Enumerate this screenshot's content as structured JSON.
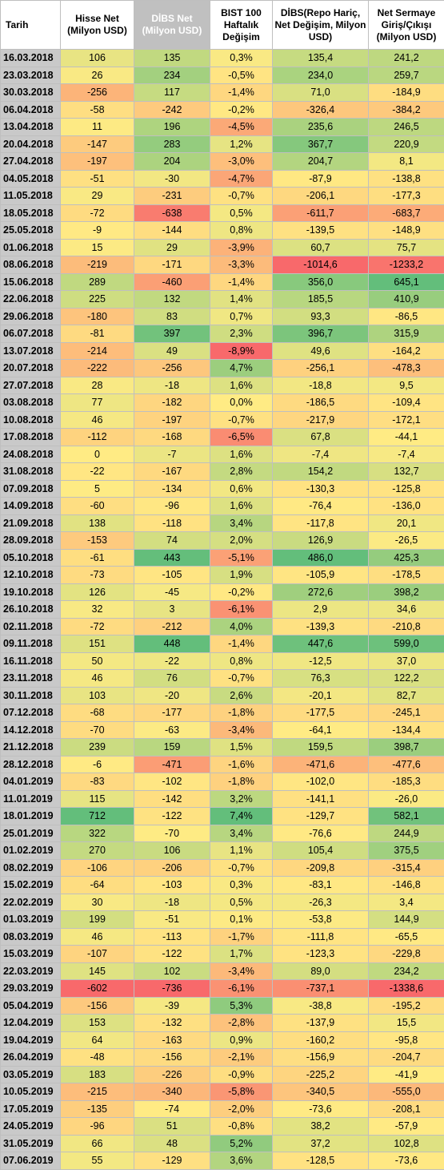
{
  "headers": [
    "Tarih",
    "Hisse Net (Milyon USD)",
    "DİBS Net (Milyon USD)",
    "BIST 100 Haftalık Değişim",
    "DİBS(Repo Hariç, Net Değişim, Milyon USD)",
    "Net Sermaye Giriş/Çıkışı (Milyon USD)"
  ],
  "rows": [
    [
      "16.03.2018",
      "106",
      "135",
      "0,3%",
      "135,4",
      "241,2"
    ],
    [
      "23.03.2018",
      "26",
      "234",
      "-0,5%",
      "234,0",
      "259,7"
    ],
    [
      "30.03.2018",
      "-256",
      "117",
      "-1,4%",
      "71,0",
      "-184,9"
    ],
    [
      "06.04.2018",
      "-58",
      "-242",
      "-0,2%",
      "-326,4",
      "-384,2"
    ],
    [
      "13.04.2018",
      "11",
      "196",
      "-4,5%",
      "235,6",
      "246,5"
    ],
    [
      "20.04.2018",
      "-147",
      "283",
      "1,2%",
      "367,7",
      "220,9"
    ],
    [
      "27.04.2018",
      "-197",
      "204",
      "-3,0%",
      "204,7",
      "8,1"
    ],
    [
      "04.05.2018",
      "-51",
      "-30",
      "-4,7%",
      "-87,9",
      "-138,8"
    ],
    [
      "11.05.2018",
      "29",
      "-231",
      "-0,7%",
      "-206,1",
      "-177,3"
    ],
    [
      "18.05.2018",
      "-72",
      "-638",
      "0,5%",
      "-611,7",
      "-683,7"
    ],
    [
      "25.05.2018",
      "-9",
      "-144",
      "0,8%",
      "-139,5",
      "-148,9"
    ],
    [
      "01.06.2018",
      "15",
      "29",
      "-3,9%",
      "60,7",
      "75,7"
    ],
    [
      "08.06.2018",
      "-219",
      "-171",
      "-3,3%",
      "-1014,6",
      "-1233,2"
    ],
    [
      "15.06.2018",
      "289",
      "-460",
      "-1,4%",
      "356,0",
      "645,1"
    ],
    [
      "22.06.2018",
      "225",
      "132",
      "1,4%",
      "185,5",
      "410,9"
    ],
    [
      "29.06.2018",
      "-180",
      "83",
      "0,7%",
      "93,3",
      "-86,5"
    ],
    [
      "06.07.2018",
      "-81",
      "397",
      "2,3%",
      "396,7",
      "315,9"
    ],
    [
      "13.07.2018",
      "-214",
      "49",
      "-8,9%",
      "49,6",
      "-164,2"
    ],
    [
      "20.07.2018",
      "-222",
      "-256",
      "4,7%",
      "-256,1",
      "-478,3"
    ],
    [
      "27.07.2018",
      "28",
      "-18",
      "1,6%",
      "-18,8",
      "9,5"
    ],
    [
      "03.08.2018",
      "77",
      "-182",
      "0,0%",
      "-186,5",
      "-109,4"
    ],
    [
      "10.08.2018",
      "46",
      "-197",
      "-0,7%",
      "-217,9",
      "-172,1"
    ],
    [
      "17.08.2018",
      "-112",
      "-168",
      "-6,5%",
      "67,8",
      "-44,1"
    ],
    [
      "24.08.2018",
      "0",
      "-7",
      "1,6%",
      "-7,4",
      "-7,4"
    ],
    [
      "31.08.2018",
      "-22",
      "-167",
      "2,8%",
      "154,2",
      "132,7"
    ],
    [
      "07.09.2018",
      "5",
      "-134",
      "0,6%",
      "-130,3",
      "-125,8"
    ],
    [
      "14.09.2018",
      "-60",
      "-96",
      "1,6%",
      "-76,4",
      "-136,0"
    ],
    [
      "21.09.2018",
      "138",
      "-118",
      "3,4%",
      "-117,8",
      "20,1"
    ],
    [
      "28.09.2018",
      "-153",
      "74",
      "2,0%",
      "126,9",
      "-26,5"
    ],
    [
      "05.10.2018",
      "-61",
      "443",
      "-5,1%",
      "486,0",
      "425,3"
    ],
    [
      "12.10.2018",
      "-73",
      "-105",
      "1,9%",
      "-105,9",
      "-178,5"
    ],
    [
      "19.10.2018",
      "126",
      "-45",
      "-0,2%",
      "272,6",
      "398,2"
    ],
    [
      "26.10.2018",
      "32",
      "3",
      "-6,1%",
      "2,9",
      "34,6"
    ],
    [
      "02.11.2018",
      "-72",
      "-212",
      "4,0%",
      "-139,3",
      "-210,8"
    ],
    [
      "09.11.2018",
      "151",
      "448",
      "-1,4%",
      "447,6",
      "599,0"
    ],
    [
      "16.11.2018",
      "50",
      "-22",
      "0,8%",
      "-12,5",
      "37,0"
    ],
    [
      "23.11.2018",
      "46",
      "76",
      "-0,7%",
      "76,3",
      "122,2"
    ],
    [
      "30.11.2018",
      "103",
      "-20",
      "2,6%",
      "-20,1",
      "82,7"
    ],
    [
      "07.12.2018",
      "-68",
      "-177",
      "-1,8%",
      "-177,5",
      "-245,1"
    ],
    [
      "14.12.2018",
      "-70",
      "-63",
      "-3,4%",
      "-64,1",
      "-134,4"
    ],
    [
      "21.12.2018",
      "239",
      "159",
      "1,5%",
      "159,5",
      "398,7"
    ],
    [
      "28.12.2018",
      "-6",
      "-471",
      "-1,6%",
      "-471,6",
      "-477,6"
    ],
    [
      "04.01.2019",
      "-83",
      "-102",
      "-1,8%",
      "-102,0",
      "-185,3"
    ],
    [
      "11.01.2019",
      "115",
      "-142",
      "3,2%",
      "-141,1",
      "-26,0"
    ],
    [
      "18.01.2019",
      "712",
      "-122",
      "7,4%",
      "-129,7",
      "582,1"
    ],
    [
      "25.01.2019",
      "322",
      "-70",
      "3,4%",
      "-76,6",
      "244,9"
    ],
    [
      "01.02.2019",
      "270",
      "106",
      "1,1%",
      "105,4",
      "375,5"
    ],
    [
      "08.02.2019",
      "-106",
      "-206",
      "-0,7%",
      "-209,8",
      "-315,4"
    ],
    [
      "15.02.2019",
      "-64",
      "-103",
      "0,3%",
      "-83,1",
      "-146,8"
    ],
    [
      "22.02.2019",
      "30",
      "-18",
      "0,5%",
      "-26,3",
      "3,4"
    ],
    [
      "01.03.2019",
      "199",
      "-51",
      "0,1%",
      "-53,8",
      "144,9"
    ],
    [
      "08.03.2019",
      "46",
      "-113",
      "-1,7%",
      "-111,8",
      "-65,5"
    ],
    [
      "15.03.2019",
      "-107",
      "-122",
      "1,7%",
      "-123,3",
      "-229,8"
    ],
    [
      "22.03.2019",
      "145",
      "102",
      "-3,4%",
      "89,0",
      "234,2"
    ],
    [
      "29.03.2019",
      "-602",
      "-736",
      "-6,1%",
      "-737,1",
      "-1338,6"
    ],
    [
      "05.04.2019",
      "-156",
      "-39",
      "5,3%",
      "-38,8",
      "-195,2"
    ],
    [
      "12.04.2019",
      "153",
      "-132",
      "-2,8%",
      "-137,9",
      "15,5"
    ],
    [
      "19.04.2019",
      "64",
      "-163",
      "0,9%",
      "-160,2",
      "-95,8"
    ],
    [
      "26.04.2019",
      "-48",
      "-156",
      "-2,1%",
      "-156,9",
      "-204,7"
    ],
    [
      "03.05.2019",
      "183",
      "-226",
      "-0,9%",
      "-225,2",
      "-41,9"
    ],
    [
      "10.05.2019",
      "-215",
      "-340",
      "-5,8%",
      "-340,5",
      "-555,0"
    ],
    [
      "17.05.2019",
      "-135",
      "-74",
      "-2,0%",
      "-73,6",
      "-208,1"
    ],
    [
      "24.05.2019",
      "-96",
      "51",
      "-0,8%",
      "38,2",
      "-57,9"
    ],
    [
      "31.05.2019",
      "66",
      "48",
      "5,2%",
      "37,2",
      "102,8"
    ],
    [
      "07.06.2019",
      "55",
      "-129",
      "3,6%",
      "-128,5",
      "-73,6"
    ]
  ],
  "color_scale": {
    "low": "#f8696b",
    "mid": "#ffeb84",
    "high": "#63be7b"
  }
}
